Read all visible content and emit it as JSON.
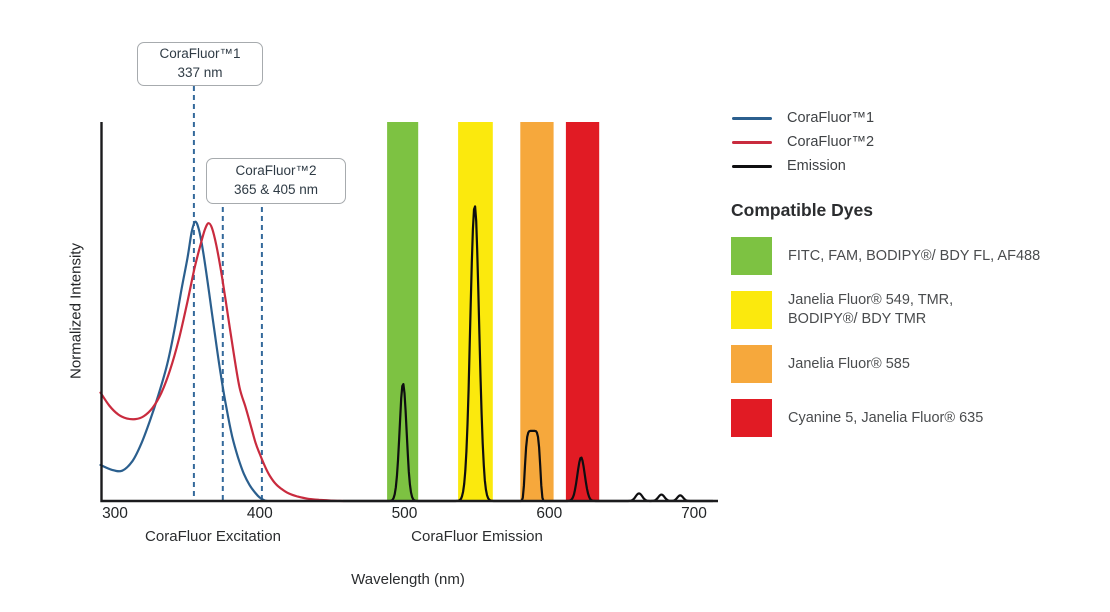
{
  "chart_data": {
    "type": "line",
    "xlabel": "Wavelength (nm)",
    "ylabel": "Normalized Intensity",
    "x_ticks": [
      300,
      400,
      500,
      600,
      700
    ],
    "x_range_nm": [
      290,
      716
    ],
    "ylim": [
      0,
      1
    ],
    "grid": false,
    "x_group_labels": [
      "CoraFluor Excitation",
      "CoraFluor Emission"
    ],
    "marker_line_color": "#34699b",
    "axis_color": "#1b1b1d",
    "callouts": [
      {
        "title": "CoraFluor™1",
        "value": "337 nm",
        "lines_nm": [
          354.5
        ]
      },
      {
        "title": "CoraFluor™2",
        "value": "365 & 405 nm",
        "lines_nm": [
          374.5,
          401.5
        ]
      }
    ],
    "bands": [
      {
        "name": "green",
        "color": "#7dc242",
        "nm": [
          488.0,
          509.5
        ]
      },
      {
        "name": "yellow",
        "color": "#fbe90d",
        "nm": [
          537.0,
          561.0
        ]
      },
      {
        "name": "orange",
        "color": "#f6a83c",
        "nm": [
          580.0,
          603.0
        ]
      },
      {
        "name": "red",
        "color": "#e11b24",
        "nm": [
          611.5,
          634.5
        ]
      }
    ],
    "series": [
      {
        "name": "CoraFluor™1",
        "role": "excitation",
        "color": "#2b5f8e",
        "points": [
          [
            290,
            0.095
          ],
          [
            298,
            0.082
          ],
          [
            305,
            0.08
          ],
          [
            312,
            0.105
          ],
          [
            318,
            0.15
          ],
          [
            324,
            0.21
          ],
          [
            330,
            0.28
          ],
          [
            336,
            0.36
          ],
          [
            341,
            0.45
          ],
          [
            346,
            0.56
          ],
          [
            350,
            0.64
          ],
          [
            353,
            0.71
          ],
          [
            355.5,
            0.737
          ],
          [
            358,
            0.715
          ],
          [
            361,
            0.655
          ],
          [
            365,
            0.55
          ],
          [
            369,
            0.44
          ],
          [
            373,
            0.335
          ],
          [
            377,
            0.245
          ],
          [
            381,
            0.17
          ],
          [
            385,
            0.115
          ],
          [
            389,
            0.072
          ],
          [
            393,
            0.042
          ],
          [
            397,
            0.021
          ],
          [
            400,
            0.009
          ],
          [
            403,
            0.002
          ],
          [
            405,
            0.0
          ]
        ]
      },
      {
        "name": "CoraFluor™2",
        "role": "excitation",
        "color": "#c92b3e",
        "points": [
          [
            290,
            0.286
          ],
          [
            296,
            0.252
          ],
          [
            302,
            0.229
          ],
          [
            308,
            0.218
          ],
          [
            314,
            0.216
          ],
          [
            320,
            0.224
          ],
          [
            326,
            0.246
          ],
          [
            332,
            0.285
          ],
          [
            338,
            0.345
          ],
          [
            344,
            0.425
          ],
          [
            350,
            0.525
          ],
          [
            355,
            0.615
          ],
          [
            359,
            0.675
          ],
          [
            362,
            0.715
          ],
          [
            364.5,
            0.733
          ],
          [
            367,
            0.72
          ],
          [
            370,
            0.675
          ],
          [
            374,
            0.59
          ],
          [
            378,
            0.49
          ],
          [
            382,
            0.39
          ],
          [
            386,
            0.3
          ],
          [
            390,
            0.25
          ],
          [
            393,
            0.21
          ],
          [
            397,
            0.155
          ],
          [
            400,
            0.124
          ],
          [
            404,
            0.088
          ],
          [
            407,
            0.066
          ],
          [
            411,
            0.045
          ],
          [
            415,
            0.032
          ],
          [
            420,
            0.02
          ],
          [
            426,
            0.012
          ],
          [
            433,
            0.006
          ],
          [
            441,
            0.003
          ],
          [
            450,
            0.001
          ],
          [
            458,
            0.0
          ]
        ]
      },
      {
        "name": "Emission",
        "role": "emission",
        "color": "#0e0e10",
        "x_span_nm": [
          458,
          713
        ],
        "peaks": [
          {
            "center_nm": 499.0,
            "height": 0.31,
            "sigma_nm": 3.4,
            "p": 2
          },
          {
            "center_nm": 548.5,
            "height": 0.78,
            "sigma_nm": 4.3,
            "p": 2
          },
          {
            "center_nm": 588.5,
            "height": 0.185,
            "sigma_nm": 5.6,
            "p": 6
          },
          {
            "center_nm": 622.0,
            "height": 0.115,
            "sigma_nm": 3.6,
            "p": 2
          },
          {
            "center_nm": 662.0,
            "height": 0.02,
            "sigma_nm": 3.2,
            "p": 2
          },
          {
            "center_nm": 677.5,
            "height": 0.017,
            "sigma_nm": 3.0,
            "p": 2
          },
          {
            "center_nm": 690.5,
            "height": 0.015,
            "sigma_nm": 2.8,
            "p": 2
          }
        ]
      }
    ]
  },
  "side_panel": {
    "heading": "Compatible Dyes",
    "dyes": [
      {
        "color": "#7dc242",
        "lines": [
          "FITC, FAM, BODIPY®/ BDY FL, AF488"
        ]
      },
      {
        "color": "#fbe90d",
        "lines": [
          "Janelia Fluor® 549, TMR,",
          "BODIPY®/ BDY TMR"
        ]
      },
      {
        "color": "#f6a83c",
        "lines": [
          "Janelia Fluor® 585"
        ]
      },
      {
        "color": "#e11b24",
        "lines": [
          "Cyanine 5, Janelia Fluor® 635"
        ]
      }
    ]
  }
}
